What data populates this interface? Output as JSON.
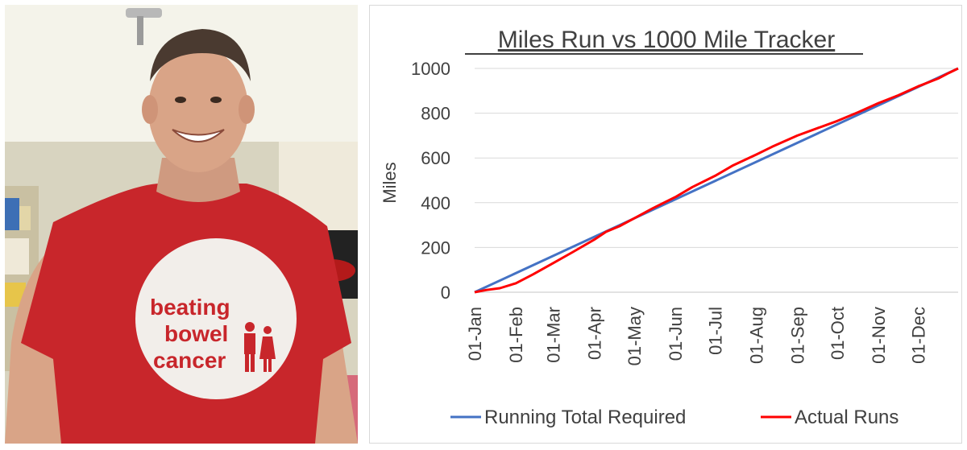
{
  "photo": {
    "shirt_text": [
      "beating",
      "bowel",
      "cancer"
    ],
    "shirt_color": "#c8262b",
    "logo_circle_color": "#f2eeea"
  },
  "chart_data": {
    "type": "line",
    "title": "Miles Run vs 1000 Mile Tracker",
    "ylabel": "Miles",
    "xlabel": "",
    "ylim": [
      0,
      1000
    ],
    "yticks": [
      0,
      200,
      400,
      600,
      800,
      1000
    ],
    "x_tick_labels": [
      "01-Jan",
      "01-Feb",
      "01-Mar",
      "01-Apr",
      "01-May",
      "01-Jun",
      "01-Jul",
      "01-Aug",
      "01-Sep",
      "01-Oct",
      "01-Nov",
      "01-Dec"
    ],
    "x_tick_days": [
      1,
      32,
      60,
      91,
      121,
      152,
      182,
      213,
      244,
      274,
      305,
      335
    ],
    "x_range_days": [
      1,
      365
    ],
    "grid": true,
    "legend_position": "bottom",
    "series": [
      {
        "name": "Running Total Required",
        "color": "#4472c4",
        "x_days": [
          1,
          365
        ],
        "values": [
          0,
          1000
        ]
      },
      {
        "name": "Actual Runs",
        "color": "#ff0000",
        "x_days": [
          1,
          10,
          20,
          32,
          45,
          60,
          75,
          91,
          100,
          110,
          121,
          135,
          152,
          165,
          182,
          195,
          213,
          225,
          244,
          260,
          274,
          290,
          305,
          320,
          335,
          350,
          358,
          365
        ],
        "values": [
          0,
          10,
          18,
          40,
          80,
          130,
          180,
          235,
          270,
          295,
          330,
          375,
          425,
          470,
          520,
          565,
          615,
          650,
          700,
          735,
          765,
          805,
          845,
          880,
          920,
          955,
          980,
          1000
        ]
      }
    ]
  }
}
